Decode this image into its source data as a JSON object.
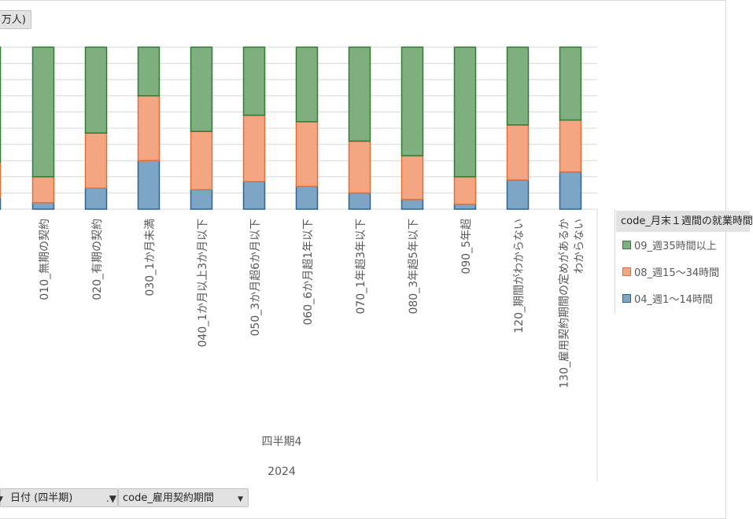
{
  "series_field_label": "万人)",
  "legend": {
    "title": "code_月末１週間の就業時間",
    "items": [
      {
        "label": "09_週35時間以上",
        "color": "#7fae7f",
        "border": "#2e7d32"
      },
      {
        "label": "08_週15〜34時間",
        "color": "#f4a582",
        "border": "#e0703a"
      },
      {
        "label": "04_週1〜14時間",
        "color": "#7ea4c6",
        "border": "#2e6391"
      }
    ]
  },
  "filters": {
    "quarter": "日付 (四半期)",
    "contract": "code_雇用契約期間"
  },
  "chart_data": {
    "type": "bar",
    "stacked": true,
    "normalized": true,
    "categories": [
      "010_無期の契約",
      "020_有期の契約",
      "030_1か月未満",
      "040_1か月以上3か月以下",
      "050_3か月超6か月以下",
      "060_6か月超1年以下",
      "070_1年超3年以下",
      "080_3年超5年以下",
      "090_5年超",
      "120_期間がわからない",
      "130_雇用契約期間の定めがあるかわからない"
    ],
    "category_lines": [
      [
        "010_無期の契約"
      ],
      [
        "020_有期の契約"
      ],
      [
        "030_1か月未満"
      ],
      [
        "040_1か月以上3か月以下"
      ],
      [
        "050_3か月超6か月以下"
      ],
      [
        "060_6か月超1年以下"
      ],
      [
        "070_1年超3年以下"
      ],
      [
        "080_3年超5年以下"
      ],
      [
        "090_5年超"
      ],
      [
        "120_期間がわからない"
      ],
      [
        "130_雇用契約期間の定めがあるか",
        "わからない"
      ]
    ],
    "series": [
      {
        "name": "04_週1〜14時間",
        "values": [
          0.04,
          0.13,
          0.3,
          0.12,
          0.17,
          0.14,
          0.1,
          0.06,
          0.03,
          0.18,
          0.23
        ]
      },
      {
        "name": "08_週15〜34時間",
        "values": [
          0.16,
          0.34,
          0.4,
          0.36,
          0.41,
          0.4,
          0.32,
          0.27,
          0.17,
          0.34,
          0.32
        ]
      },
      {
        "name": "09_週35時間以上",
        "values": [
          0.8,
          0.53,
          0.3,
          0.52,
          0.42,
          0.46,
          0.58,
          0.67,
          0.8,
          0.48,
          0.45
        ]
      }
    ],
    "partial_left_bar": {
      "values": [
        0.07,
        0.22,
        0.71
      ]
    },
    "ylim": [
      0,
      1
    ],
    "grid": true,
    "x_group_labels": [
      "四半期4",
      "2024"
    ],
    "legend_position": "right"
  }
}
